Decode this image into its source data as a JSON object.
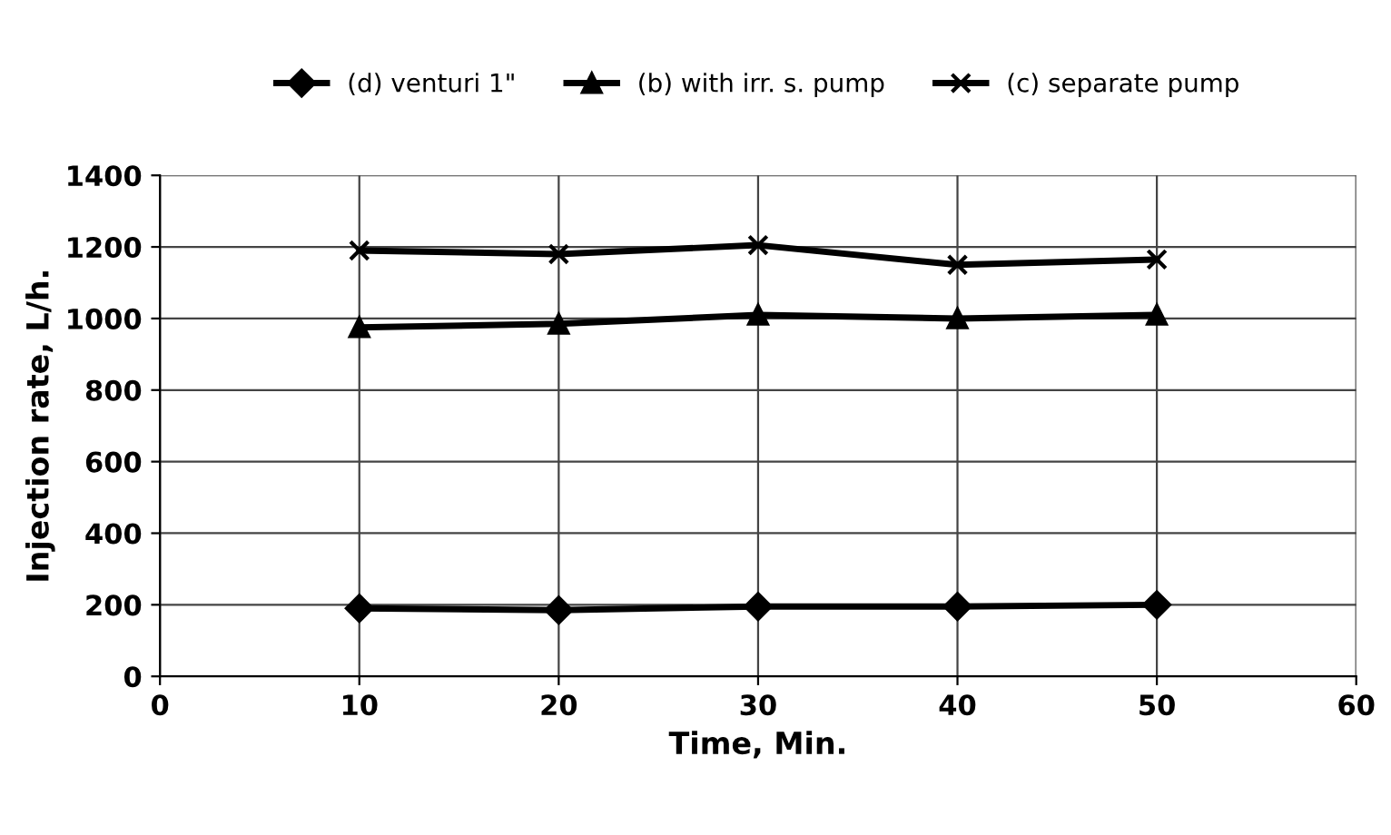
{
  "chart_data": {
    "type": "line",
    "xlabel": "Time, Min.",
    "ylabel": "Injection rate, L/h.",
    "x": [
      10,
      20,
      30,
      40,
      50
    ],
    "series": [
      {
        "name": "(d) venturi 1\"",
        "color": "#000000",
        "marker": "diamond",
        "values": [
          190,
          185,
          195,
          195,
          200
        ]
      },
      {
        "name": "(b) with irr. s. pump",
        "color": "#000000",
        "marker": "triangle",
        "values": [
          975,
          985,
          1010,
          1000,
          1010
        ]
      },
      {
        "name": "(c) separate pump",
        "color": "#000000",
        "marker": "cross",
        "values": [
          1190,
          1180,
          1205,
          1150,
          1165
        ]
      }
    ],
    "xlim": [
      0,
      60
    ],
    "xticks": [
      0,
      10,
      20,
      30,
      40,
      50,
      60
    ],
    "ylim": [
      0,
      1400
    ],
    "yticks": [
      0,
      200,
      400,
      600,
      800,
      1000,
      1200,
      1400
    ],
    "grid": true,
    "legend": "top",
    "line_style": "solid"
  }
}
